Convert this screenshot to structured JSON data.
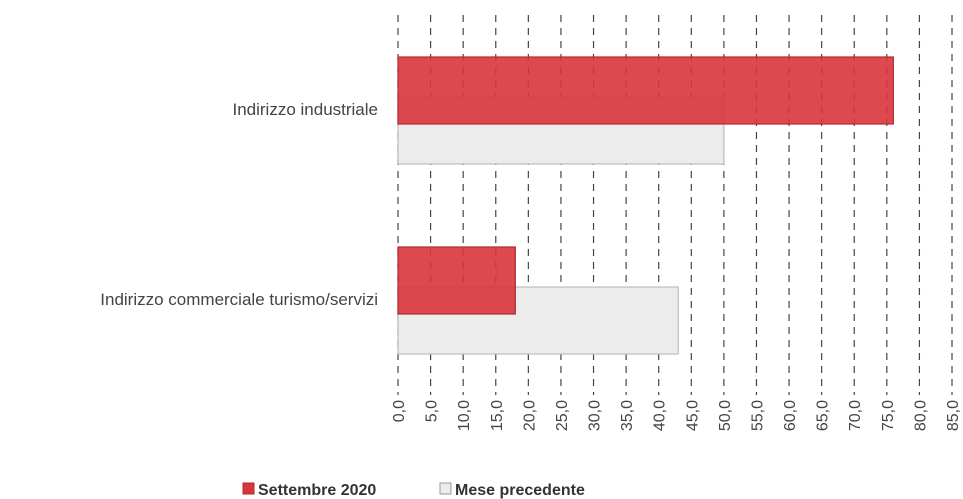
{
  "chart_data": {
    "type": "barh",
    "categories": [
      "Indirizzo industriale",
      "Indirizzo commerciale turismo/servizi"
    ],
    "series": [
      {
        "name": "Settembre 2020",
        "color": "#d9353c",
        "values": [
          76,
          18
        ]
      },
      {
        "name": "Mese precedente",
        "color": "#ececec",
        "values": [
          50,
          43
        ]
      }
    ],
    "xlim": [
      0,
      85
    ],
    "xticks": [
      {
        "value": 0,
        "label": "0,0"
      },
      {
        "value": 5,
        "label": "5,0"
      },
      {
        "value": 10,
        "label": "10,0"
      },
      {
        "value": 15,
        "label": "15,0"
      },
      {
        "value": 20,
        "label": "20,0"
      },
      {
        "value": 25,
        "label": "25,0"
      },
      {
        "value": 30,
        "label": "30,0"
      },
      {
        "value": 35,
        "label": "35,0"
      },
      {
        "value": 40,
        "label": "40,0"
      },
      {
        "value": 45,
        "label": "45,0"
      },
      {
        "value": 50,
        "label": "50,0"
      },
      {
        "value": 55,
        "label": "55,0"
      },
      {
        "value": 60,
        "label": "60,0"
      },
      {
        "value": 65,
        "label": "65,0"
      },
      {
        "value": 70,
        "label": "70,0"
      },
      {
        "value": 75,
        "label": "75,0"
      },
      {
        "value": 80,
        "label": "80,0"
      },
      {
        "value": 85,
        "label": "85,0"
      }
    ],
    "grid": true,
    "legend": "bottom"
  }
}
